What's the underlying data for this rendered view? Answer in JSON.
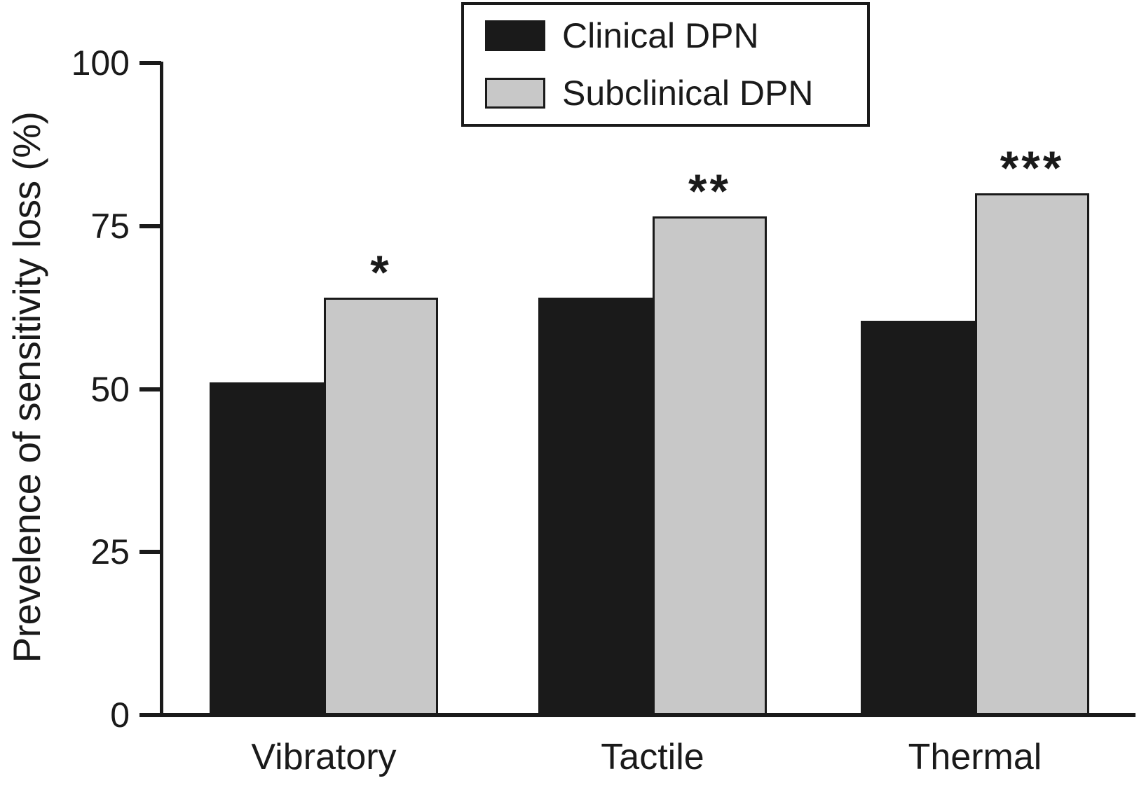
{
  "figure": {
    "background": "#ffffff",
    "text_color": "#1a1a1a"
  },
  "chart_data": {
    "type": "bar",
    "title": "",
    "xlabel": "",
    "ylabel": "Prevelence of sensitivity loss (%)",
    "ylim": [
      0,
      100
    ],
    "yticks": [
      "0",
      "25",
      "50",
      "75",
      "100"
    ],
    "grid": false,
    "legend_position": "top-center",
    "categories": [
      "Vibratory",
      "Tactile",
      "Thermal"
    ],
    "series": [
      {
        "name": "Clinical DPN",
        "color": "#1a1a1a",
        "values": [
          51,
          64,
          60.5
        ]
      },
      {
        "name": "Subclinical DPN",
        "color": "#c8c8c8",
        "values": [
          64,
          76.5,
          80
        ]
      }
    ],
    "annotations": [
      {
        "category": "Vibratory",
        "series": "Subclinical DPN",
        "text": "*"
      },
      {
        "category": "Tactile",
        "series": "Subclinical DPN",
        "text": "**"
      },
      {
        "category": "Thermal",
        "series": "Subclinical DPN",
        "text": "***"
      }
    ],
    "axis_color": "#1a1a1a"
  }
}
